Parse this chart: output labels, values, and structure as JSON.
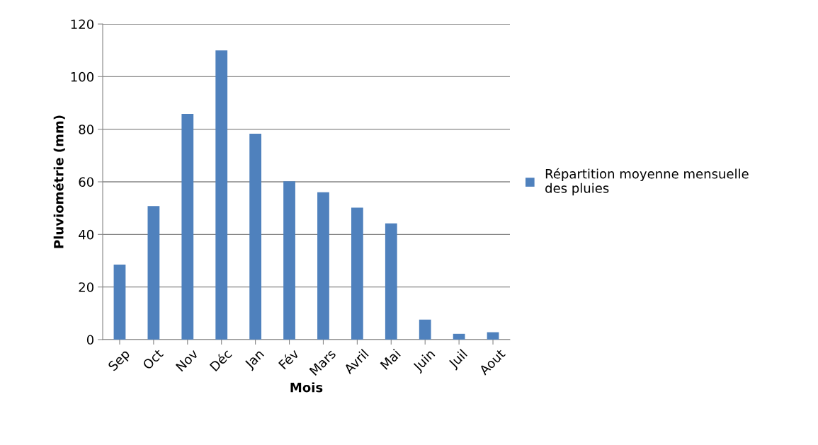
{
  "chart_data": {
    "type": "bar",
    "xlabel": "Mois",
    "ylabel": "Pluviométrie (mm)",
    "categories": [
      "Sep",
      "Oct",
      "Nov",
      "Déc",
      "Jan",
      "Fév",
      "Mars",
      "Avril",
      "Mai",
      "Juin",
      "Juil",
      "Aout"
    ],
    "series": [
      {
        "name": "Répartition moyenne mensuelle des pluies",
        "color": "#4f81bd",
        "values": [
          28.5,
          50.8,
          85.8,
          110,
          78.3,
          60.2,
          56,
          50.2,
          44.2,
          7.6,
          2.2,
          2.8
        ]
      }
    ],
    "ylim": [
      0,
      120
    ],
    "yticks": [
      0,
      20,
      40,
      60,
      80,
      100,
      120
    ],
    "grid": "y",
    "legend": "right"
  }
}
